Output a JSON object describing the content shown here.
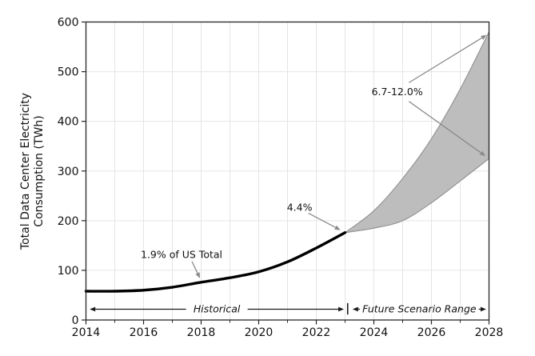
{
  "chart_data": {
    "type": "line",
    "title": "",
    "ylabel": [
      "Total Data Center Electricity",
      "Consumption (TWh)"
    ],
    "xlabel": "",
    "xlim": [
      2014,
      2028
    ],
    "ylim": [
      0,
      600
    ],
    "x_ticks_major": [
      2014,
      2016,
      2018,
      2020,
      2022,
      2024,
      2026,
      2028
    ],
    "x_ticks_minor": [
      2015,
      2017,
      2019,
      2021,
      2023,
      2025,
      2027
    ],
    "y_ticks": [
      0,
      100,
      200,
      300,
      400,
      500,
      600
    ],
    "grid": {
      "vertical_every_year": true,
      "horizontal_every_100": true
    },
    "colors": {
      "historical_line": "#000000",
      "band_fill": "#bdbdbd",
      "band_edge": "#949494",
      "annotation_arrow": "#8a8a8a",
      "span_arrow": "#1a1a1a",
      "grid": "#e5e5e5",
      "axis": "#262626",
      "text": "#111111"
    },
    "series": [
      {
        "name": "Historical",
        "type": "line",
        "x": [
          2014,
          2015,
          2016,
          2017,
          2018,
          2019,
          2020,
          2021,
          2022,
          2023
        ],
        "y": [
          58,
          58,
          60,
          66,
          76,
          85,
          97,
          117,
          145,
          176
        ]
      },
      {
        "name": "Future Scenario Range",
        "type": "band",
        "x": [
          2023,
          2024,
          2025,
          2026,
          2027,
          2028
        ],
        "lower": [
          176,
          185,
          200,
          236,
          280,
          325
        ],
        "upper": [
          176,
          220,
          285,
          365,
          465,
          580
        ]
      }
    ],
    "annotations": [
      {
        "text": "1.9% of US Total",
        "tx": 2017.32,
        "ty": 132,
        "arrows": [
          {
            "x1": 2017.68,
            "y1": 118,
            "x2": 2017.96,
            "y2": 84
          }
        ]
      },
      {
        "text": "4.4%",
        "tx": 2021.42,
        "ty": 227,
        "arrows": [
          {
            "x1": 2021.73,
            "y1": 215,
            "x2": 2022.84,
            "y2": 181
          }
        ]
      },
      {
        "text": "6.7-12.0%",
        "tx": 2024.81,
        "ty": 460,
        "arrows": [
          {
            "x1": 2025.22,
            "y1": 478,
            "x2": 2027.92,
            "y2": 574
          },
          {
            "x1": 2025.22,
            "y1": 440,
            "x2": 2027.88,
            "y2": 330
          }
        ]
      }
    ],
    "span_labels": [
      {
        "text": "Historical",
        "x1": 2014.13,
        "x2": 2022.96,
        "y": 21.8
      },
      {
        "text": "Future Scenario Range",
        "x1": 2023.26,
        "x2": 2027.9,
        "y": 21.8
      }
    ],
    "divider": {
      "x": 2023.09,
      "y1": 11,
      "y2": 34
    }
  }
}
